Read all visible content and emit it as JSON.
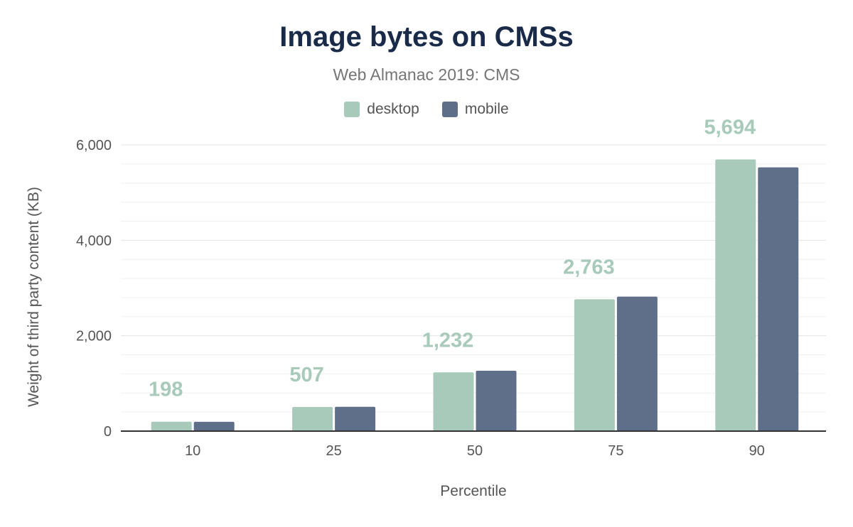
{
  "chart_data": {
    "type": "bar",
    "title": "Image bytes on CMSs",
    "subtitle": "Web Almanac 2019: CMS",
    "xlabel": "Percentile",
    "ylabel": "Weight of third party content (KB)",
    "categories": [
      "10",
      "25",
      "50",
      "75",
      "90"
    ],
    "series": [
      {
        "name": "desktop",
        "color": "#a8cabb",
        "values": [
          198,
          507,
          1232,
          2763,
          5694
        ],
        "labels": [
          "198",
          "507",
          "1,232",
          "2,763",
          "5,694"
        ]
      },
      {
        "name": "mobile",
        "color": "#5f6f8a",
        "values": [
          195,
          510,
          1265,
          2820,
          5530
        ]
      }
    ],
    "ylim": [
      0,
      6000
    ],
    "yticks": [
      "0",
      "2,000",
      "4,000",
      "6,000"
    ],
    "ytick_values": [
      0,
      2000,
      4000,
      6000
    ],
    "grid": true,
    "legend": "top"
  }
}
